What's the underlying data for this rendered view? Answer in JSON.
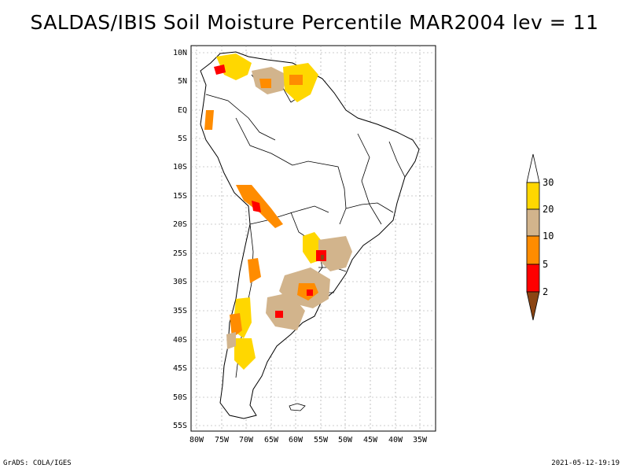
{
  "title": "SALDAS/IBIS Soil Moisture Percentile MAR2004 lev = 11",
  "map": {
    "lat_ticks": [
      "10N",
      "5N",
      "EQ",
      "5S",
      "10S",
      "15S",
      "20S",
      "25S",
      "30S",
      "35S",
      "40S",
      "45S",
      "50S",
      "55S"
    ],
    "lon_ticks": [
      "80W",
      "75W",
      "70W",
      "65W",
      "60W",
      "55W",
      "50W",
      "45W",
      "40W",
      "35W"
    ],
    "lon_range": [
      -81,
      -33
    ],
    "lat_range": [
      -56,
      12
    ]
  },
  "legend": {
    "labels": [
      "30",
      "20",
      "10",
      "5",
      "2"
    ],
    "colors": {
      "above30": "#ffffff",
      "20-30": "#ffd700",
      "10-20": "#d2b48c",
      "5-10": "#ff8c00",
      "2-5": "#ff0000",
      "below2": "#8b4513"
    }
  },
  "footer": {
    "left": "GrADS: COLA/IGES",
    "right": "2021-05-12-19:19"
  }
}
